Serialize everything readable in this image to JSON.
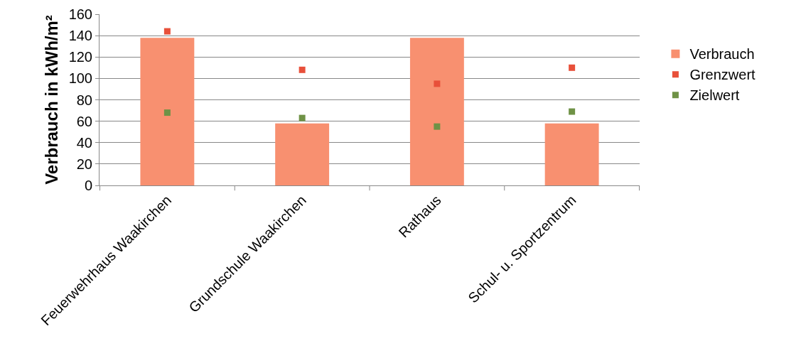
{
  "chart_data": {
    "type": "bar",
    "ylabel": "Verbrauch in kWh/m²",
    "categories": [
      "Feuerwehrhaus Waakirchen",
      "Grundschule Waakirchen",
      "Rathaus",
      "Schul- u. Sportzentrum"
    ],
    "series": [
      {
        "name": "Verbrauch",
        "color": "#f89070",
        "values": [
          138,
          58,
          138,
          58
        ]
      },
      {
        "name": "Grenzwert",
        "type": "scatter",
        "x": [
          "Feuerwehrhaus Waakirchen",
          "Grundschule Waakirchen",
          "Rathaus",
          "Schul- u. Sportzentrum"
        ],
        "color": "#e8503a",
        "values": [
          144,
          108,
          95,
          110
        ]
      },
      {
        "name": "Zielwert",
        "type": "scatter",
        "x": [
          "Feuerwehrhaus Waakirchen",
          "Grundschule Waakirchen",
          "Rathaus",
          "Schul- u. Sportzentrum"
        ],
        "color": "#6f9246",
        "values": [
          68,
          63,
          55,
          69
        ]
      }
    ],
    "ylim": [
      0,
      160
    ],
    "yticks": [
      0,
      20,
      40,
      60,
      80,
      100,
      120,
      140,
      160
    ],
    "grid": "y",
    "legend": "right"
  }
}
